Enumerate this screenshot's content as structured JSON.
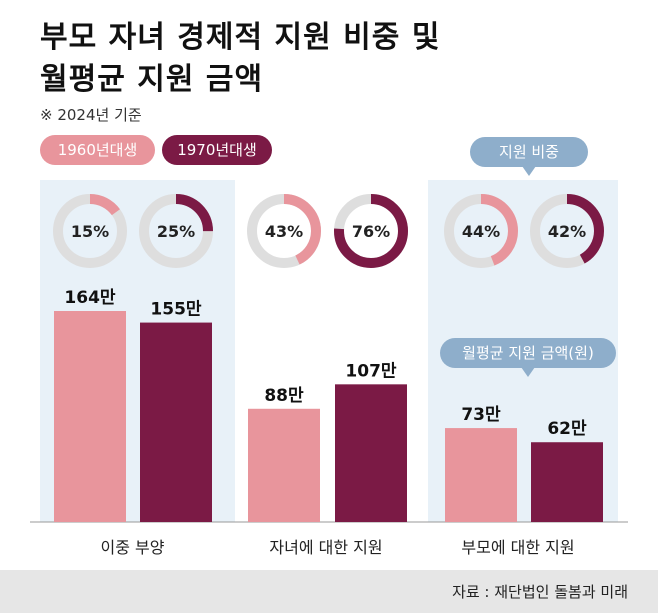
{
  "title_line1": "부모 자녀 경제적 지원 비중 및",
  "title_line2": "월평균 지원 금액",
  "note": "※ 2024년 기준",
  "legend": [
    {
      "label": "1960년대생",
      "color": "#e8959c"
    },
    {
      "label": "1970년대생",
      "color": "#7b1a45"
    }
  ],
  "callout_share": "지원 비중",
  "callout_amount": "월평균 지원 금액(원)",
  "source": "자료 : 재단법인 돌봄과 미래",
  "chart_data": {
    "type": "bar",
    "categories": [
      "이중 부양",
      "자녀에 대한 지원",
      "부모에 대한 지원"
    ],
    "unit": "만",
    "series": [
      {
        "name": "1960년대생",
        "values": [
          164,
          88,
          73
        ],
        "share": [
          15,
          43,
          44
        ],
        "color": "#e8959c"
      },
      {
        "name": "1970년대생",
        "values": [
          155,
          107,
          62
        ],
        "share": [
          25,
          76,
          42
        ],
        "color": "#7b1a45"
      }
    ],
    "ylim": [
      0,
      200
    ]
  }
}
